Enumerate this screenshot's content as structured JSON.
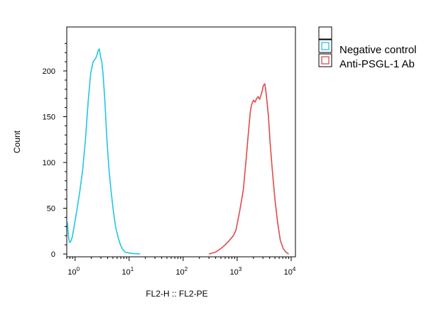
{
  "chart_data": {
    "type": "line",
    "title": "",
    "xlabel": "FL2-H :: FL2-PE",
    "ylabel": "Count",
    "xscale": "log",
    "xlim": [
      0.7,
      12000
    ],
    "ylim": [
      0,
      240
    ],
    "grid": false,
    "legend_position": "right, outside plot",
    "y_ticks": [
      0,
      50,
      100,
      150,
      200
    ],
    "x_ticks": [
      {
        "value": 1,
        "base": "10",
        "exp": "0"
      },
      {
        "value": 10,
        "base": "10",
        "exp": "1"
      },
      {
        "value": 100,
        "base": "10",
        "exp": "2"
      },
      {
        "value": 1000,
        "base": "10",
        "exp": "3"
      },
      {
        "value": 10000,
        "base": "10",
        "exp": "4"
      }
    ],
    "series": [
      {
        "name": "Negative control",
        "color": "#22c5e6",
        "points": [
          [
            0.72,
            35
          ],
          [
            0.75,
            20
          ],
          [
            0.78,
            13
          ],
          [
            0.82,
            13
          ],
          [
            0.88,
            18
          ],
          [
            0.96,
            30
          ],
          [
            1.08,
            48
          ],
          [
            1.22,
            68
          ],
          [
            1.38,
            92
          ],
          [
            1.55,
            125
          ],
          [
            1.75,
            168
          ],
          [
            1.95,
            198
          ],
          [
            2.15,
            210
          ],
          [
            2.35,
            213
          ],
          [
            2.5,
            216
          ],
          [
            2.65,
            222
          ],
          [
            2.8,
            224
          ],
          [
            2.95,
            216
          ],
          [
            3.1,
            211
          ],
          [
            3.3,
            196
          ],
          [
            3.55,
            168
          ],
          [
            3.85,
            128
          ],
          [
            4.2,
            95
          ],
          [
            4.6,
            70
          ],
          [
            5.1,
            47
          ],
          [
            5.6,
            30
          ],
          [
            6.2,
            19
          ],
          [
            6.9,
            10
          ],
          [
            7.6,
            5
          ],
          [
            8.5,
            2
          ],
          [
            10,
            1
          ],
          [
            12,
            0.5
          ],
          [
            16,
            0
          ]
        ]
      },
      {
        "name": "Anti-PSGL-1 Ab",
        "color": "#e34a4a",
        "points": [
          [
            300,
            0
          ],
          [
            400,
            2
          ],
          [
            500,
            6
          ],
          [
            600,
            10
          ],
          [
            700,
            14
          ],
          [
            850,
            20
          ],
          [
            950,
            26
          ],
          [
            1100,
            45
          ],
          [
            1300,
            70
          ],
          [
            1450,
            100
          ],
          [
            1600,
            130
          ],
          [
            1750,
            155
          ],
          [
            1850,
            163
          ],
          [
            2000,
            168
          ],
          [
            2150,
            166
          ],
          [
            2300,
            170
          ],
          [
            2450,
            172
          ],
          [
            2600,
            169
          ],
          [
            2750,
            173
          ],
          [
            2900,
            178
          ],
          [
            3050,
            184
          ],
          [
            3250,
            186
          ],
          [
            3400,
            178
          ],
          [
            3600,
            165
          ],
          [
            3800,
            150
          ],
          [
            4100,
            120
          ],
          [
            4500,
            90
          ],
          [
            5000,
            60
          ],
          [
            5600,
            35
          ],
          [
            6300,
            15
          ],
          [
            7100,
            6
          ],
          [
            8000,
            2
          ],
          [
            9000,
            0
          ]
        ]
      }
    ]
  }
}
